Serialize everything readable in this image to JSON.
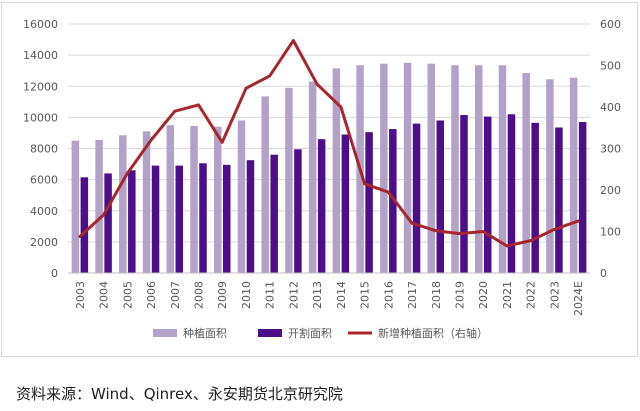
{
  "chart_data": {
    "type": "bar",
    "categories": [
      "2003",
      "2004",
      "2005",
      "2006",
      "2007",
      "2008",
      "2009",
      "2010",
      "2011",
      "2012",
      "2013",
      "2014",
      "2015",
      "2016",
      "2017",
      "2018",
      "2019",
      "2020",
      "2021",
      "2022",
      "2023",
      "2024E"
    ],
    "series": [
      {
        "name": "种植面积",
        "kind": "bar",
        "axis": "left",
        "color": "#b3a2c7",
        "values": [
          8500,
          8550,
          8850,
          9100,
          9500,
          9450,
          9400,
          9800,
          11350,
          11900,
          12300,
          13150,
          13350,
          13450,
          13500,
          13450,
          13350,
          13350,
          13350,
          12850,
          12450,
          12550
        ]
      },
      {
        "name": "开割面积",
        "kind": "bar",
        "axis": "left",
        "color": "#4b0f8a",
        "values": [
          6150,
          6400,
          6600,
          6900,
          6900,
          7050,
          6950,
          7250,
          7600,
          7950,
          8600,
          8900,
          9050,
          9250,
          9600,
          9800,
          10150,
          10050,
          10200,
          9650,
          9350,
          9700
        ]
      },
      {
        "name": "新增种植面积（右轴）",
        "kind": "line",
        "axis": "right",
        "color": "#a6262e",
        "values": [
          88,
          140,
          240,
          320,
          390,
          405,
          315,
          445,
          475,
          560,
          455,
          400,
          215,
          195,
          120,
          102,
          95,
          100,
          65,
          78,
          105,
          125
        ]
      }
    ],
    "left_axis": {
      "min": 0,
      "max": 16000,
      "ticks": [
        0,
        2000,
        4000,
        6000,
        8000,
        10000,
        12000,
        14000,
        16000
      ]
    },
    "right_axis": {
      "min": 0,
      "max": 600,
      "ticks": [
        0,
        100,
        200,
        300,
        400,
        500,
        600
      ]
    },
    "grid": true,
    "legend_position": "bottom"
  },
  "source_text": "资料来源：Wind、Qinrex、永安期货北京研究院"
}
